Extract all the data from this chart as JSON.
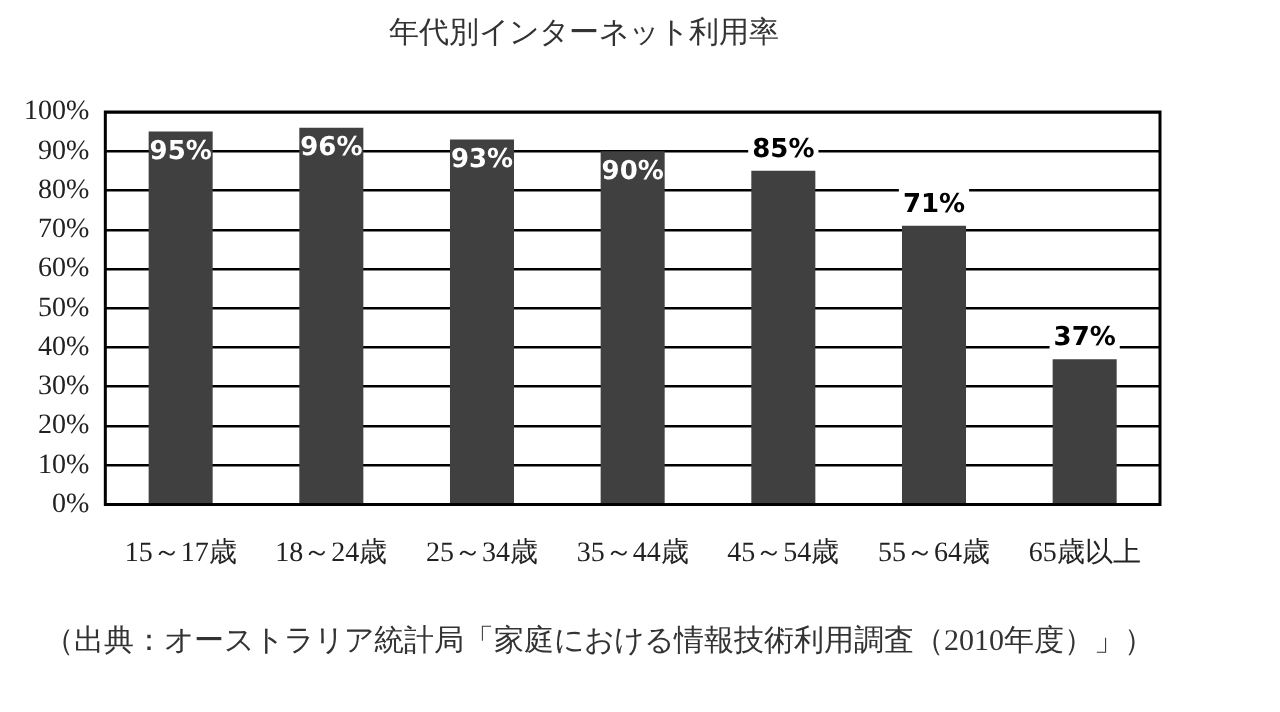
{
  "chart_data": {
    "type": "bar",
    "title": "年代別インターネット利用率",
    "categories": [
      "15～17歳",
      "18～24歳",
      "25～34歳",
      "35～44歳",
      "45～54歳",
      "55～64歳",
      "65歳以上"
    ],
    "values": [
      95,
      96,
      93,
      90,
      85,
      71,
      37
    ],
    "value_labels": [
      "95%",
      "96%",
      "93%",
      "90%",
      "85%",
      "71%",
      "37%"
    ],
    "color": "#404040",
    "ylim": [
      0,
      100
    ],
    "yticks": [
      {
        "value": 0,
        "label": "0%"
      },
      {
        "value": 10,
        "label": "10%"
      },
      {
        "value": 20,
        "label": "20%"
      },
      {
        "value": 30,
        "label": "30%"
      },
      {
        "value": 40,
        "label": "40%"
      },
      {
        "value": 50,
        "label": "50%"
      },
      {
        "value": 60,
        "label": "60%"
      },
      {
        "value": 70,
        "label": "70%"
      },
      {
        "value": 80,
        "label": "80%"
      },
      {
        "value": 90,
        "label": "90%"
      },
      {
        "value": 100,
        "label": "100%"
      }
    ],
    "grid": "y",
    "legend": false,
    "annotations": [
      "（出典：オーストラリア統計局「家庭における情報技術利用調査（2010年度）」）"
    ]
  }
}
